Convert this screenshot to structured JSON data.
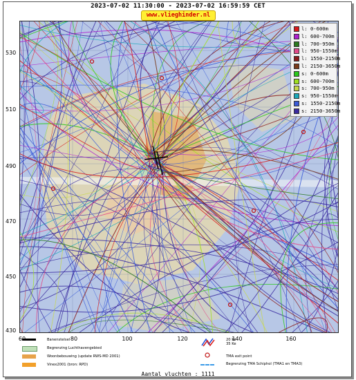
{
  "header": {
    "title": "2023-07-02 11:30:00 - 2023-07-02 16:59:59 CET",
    "site_link": "www.vlieghinder.nl"
  },
  "map": {
    "y_ticks": [
      "530",
      "510",
      "490",
      "470",
      "450",
      "430"
    ],
    "x_ticks": [
      "60",
      "80",
      "100",
      "120",
      "140",
      "160"
    ],
    "background_color": "#b7c7e6"
  },
  "legend": {
    "items": [
      {
        "label": "l: 0-600m",
        "color": "#d81a1a"
      },
      {
        "label": "l: 600-700m",
        "color": "#b020d0"
      },
      {
        "label": "l: 700-950m",
        "color": "#2a7a1e"
      },
      {
        "label": "l: 950-1550m",
        "color": "#e24a8a"
      },
      {
        "label": "l: 1550-2150m",
        "color": "#8b1a1a"
      },
      {
        "label": "l: 2150-3650m",
        "color": "#7a3a1a"
      },
      {
        "label": "s: 0-600m",
        "color": "#2ac81a"
      },
      {
        "label": "s: 600-700m",
        "color": "#a0e020"
      },
      {
        "label": "s: 700-950m",
        "color": "#c8d84a"
      },
      {
        "label": "s: 950-1550m",
        "color": "#1aa8b8"
      },
      {
        "label": "s: 1550-2150m",
        "color": "#3a5ad8"
      },
      {
        "label": "s: 2150-3650m",
        "color": "#3a2aa0"
      }
    ]
  },
  "bottom_legend": {
    "runway": "Banenstelsel",
    "airport_zone": "Begrenzing Luchthavengebied",
    "housing": "Woonbebouwing (update RWS-MD 2001)",
    "vinex": "Vinex2001 (bron: RPD)",
    "noise_a": "20 Ke",
    "noise_b": "35 Ke",
    "tma_exit": "TMA exit point",
    "tma_boundary": "Begrenzing TMA Schiphol  (TMA1 en TMA3)"
  },
  "footer": {
    "flight_count": "Aantal vluchten : 1111"
  }
}
